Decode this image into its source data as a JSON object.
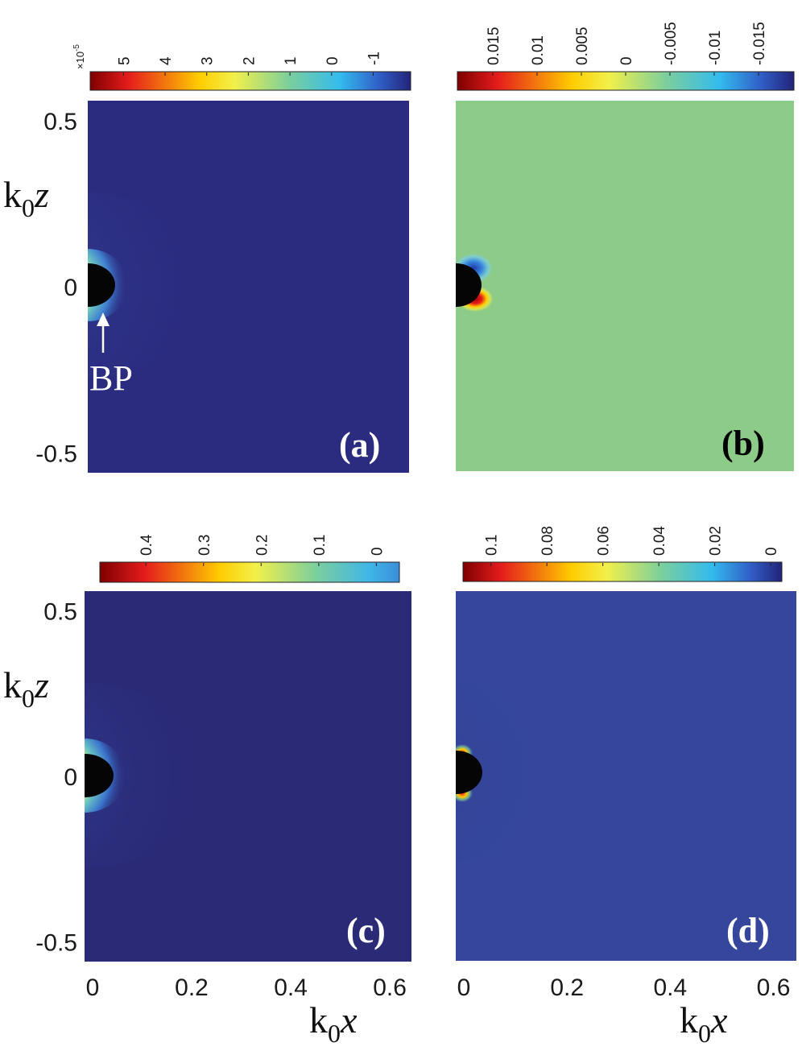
{
  "chart_data": [
    {
      "type": "heatmap",
      "panel_label": "(a)",
      "annotation": "BP",
      "ylabel_main": "k",
      "ylabel_sub": "0",
      "ylabel_var": "z",
      "yticks": [
        "0.5",
        "0",
        "-0.5"
      ],
      "ytick_values": [
        0.5,
        0,
        -0.5
      ],
      "ylim": [
        -0.56,
        0.56
      ],
      "xlim": [
        0,
        0.66
      ],
      "colorbar": {
        "ticks": [
          "5",
          "4",
          "3",
          "2",
          "1",
          "0",
          "-1"
        ],
        "tick_values": [
          5,
          4,
          3,
          2,
          1,
          0,
          -1
        ],
        "range": [
          5.8,
          -1.9
        ],
        "multiplier_base": "×10",
        "multiplier_exp": "-5",
        "colormap": "jet-reversed"
      },
      "background_color": "#2b2c80",
      "field": "localized positive field at the black particle (0,0), decaying outward to background"
    },
    {
      "type": "heatmap",
      "panel_label": "(b)",
      "yticks": [],
      "xlim": [
        0,
        0.66
      ],
      "ylim": [
        -0.56,
        0.56
      ],
      "colorbar": {
        "ticks": [
          "0.015",
          "0.01",
          "0.005",
          "0",
          "-0.005",
          "-0.01",
          "-0.015"
        ],
        "tick_values": [
          0.015,
          0.01,
          0.005,
          0,
          -0.005,
          -0.01,
          -0.015
        ],
        "range": [
          0.019,
          -0.019
        ],
        "colormap": "jet-reversed"
      },
      "background_color": "#8dcb88",
      "field": "antisymmetric lobes: negative above, positive below the particle"
    },
    {
      "type": "heatmap",
      "panel_label": "(c)",
      "ylabel_main": "k",
      "ylabel_sub": "0",
      "ylabel_var": "z",
      "yticks": [
        "0.5",
        "0",
        "-0.5"
      ],
      "ytick_values": [
        0.5,
        0,
        -0.5
      ],
      "xlabel_main": "k",
      "xlabel_sub": "0",
      "xlabel_var": "x",
      "xticks": [
        "0",
        "0.2",
        "0.4",
        "0.6"
      ],
      "xtick_values": [
        0,
        0.2,
        0.4,
        0.6
      ],
      "xlim": [
        0,
        0.66
      ],
      "ylim": [
        -0.56,
        0.56
      ],
      "colorbar": {
        "ticks": [
          "0.4",
          "0.3",
          "0.2",
          "0.1",
          "0"
        ],
        "tick_values": [
          0.4,
          0.3,
          0.2,
          0.1,
          0
        ],
        "range": [
          0.48,
          -0.04
        ],
        "colormap": "jet-reversed"
      },
      "background_color": "#2a2a77",
      "field": "localized positive field at the particle, decaying outward"
    },
    {
      "type": "heatmap",
      "panel_label": "(d)",
      "xlabel_main": "k",
      "xlabel_sub": "0",
      "xlabel_var": "x",
      "xticks": [
        "0",
        "0.2",
        "0.4",
        "0.6"
      ],
      "xtick_values": [
        0,
        0.2,
        0.4,
        0.6
      ],
      "xlim": [
        0,
        0.66
      ],
      "ylim": [
        -0.56,
        0.56
      ],
      "colorbar": {
        "ticks": [
          "0.1",
          "0.08",
          "0.06",
          "0.04",
          "0.02",
          "0"
        ],
        "tick_values": [
          0.1,
          0.08,
          0.06,
          0.04,
          0.02,
          0
        ],
        "range": [
          0.11,
          -0.004
        ],
        "colormap": "jet-reversed"
      },
      "background_color": "#35469c",
      "field": "weak field localized at the top and bottom of the particle"
    }
  ]
}
